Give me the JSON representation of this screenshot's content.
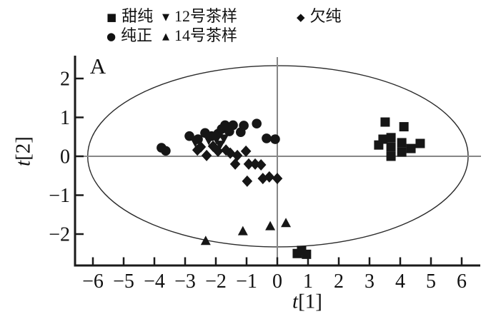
{
  "annotation": "A",
  "colors": {
    "marker": "#161616",
    "axis": "#1a1a1a",
    "crosshair": "#878787",
    "ellipse": "#2b2b2b",
    "background": "#ffffff"
  },
  "legend": {
    "items": [
      {
        "glyph": "■",
        "marker": "square",
        "label": "甜纯"
      },
      {
        "glyph": "▼",
        "marker": "triangle-down",
        "label": "12号茶样"
      },
      {
        "glyph": "◆",
        "marker": "diamond",
        "label": "欠纯"
      },
      {
        "glyph": "●",
        "marker": "circle",
        "label": "纯正"
      },
      {
        "glyph": "▲",
        "marker": "triangle-up",
        "label": "14号茶样"
      }
    ]
  },
  "axes": {
    "x": {
      "symbol": "t",
      "index": "[1]"
    },
    "y": {
      "symbol": "t",
      "index": "[2]"
    }
  },
  "chart_data": {
    "type": "scatter",
    "title": "",
    "xlabel": "t[1]",
    "ylabel": "t[2]",
    "xlim": [
      -6.6,
      6.6
    ],
    "ylim": [
      -2.8,
      2.55
    ],
    "x_ticks": [
      -6,
      -5,
      -4,
      -3,
      -2,
      -1,
      0,
      1,
      2,
      3,
      4,
      5,
      6
    ],
    "y_ticks": [
      2,
      1,
      0,
      -1,
      -2
    ],
    "grid": false,
    "legend_position": "top",
    "ellipse": {
      "cx": 0.02,
      "cy": 0.0,
      "rx": 6.19,
      "ry": 2.33
    },
    "series": [
      {
        "name": "甜纯",
        "marker": "square",
        "points": [
          [
            3.51,
            0.88
          ],
          [
            4.12,
            0.76
          ],
          [
            3.44,
            0.44
          ],
          [
            3.7,
            0.48
          ],
          [
            4.05,
            0.35
          ],
          [
            3.3,
            0.29
          ],
          [
            3.7,
            0.24
          ],
          [
            4.35,
            0.2
          ],
          [
            4.65,
            0.33
          ],
          [
            4.05,
            0.11
          ],
          [
            3.7,
            0.0
          ],
          [
            0.65,
            -2.5
          ],
          [
            0.79,
            -2.42
          ],
          [
            0.95,
            -2.52
          ]
        ]
      },
      {
        "name": "纯正",
        "marker": "circle",
        "points": [
          [
            -3.77,
            0.22
          ],
          [
            -3.63,
            0.14
          ],
          [
            -2.86,
            0.52
          ],
          [
            -2.58,
            0.44
          ],
          [
            -2.35,
            0.6
          ],
          [
            -2.14,
            0.52
          ],
          [
            -1.93,
            0.58
          ],
          [
            -1.81,
            0.7
          ],
          [
            -1.7,
            0.8
          ],
          [
            -1.56,
            0.64
          ],
          [
            -1.44,
            0.8
          ],
          [
            -1.19,
            0.62
          ],
          [
            -1.09,
            0.79
          ],
          [
            -0.67,
            0.84
          ],
          [
            -0.35,
            0.46
          ],
          [
            -0.07,
            0.44
          ]
        ]
      },
      {
        "name": "12号茶样",
        "marker": "triangle-down",
        "points": [
          [
            -2.67,
            0.37
          ],
          [
            -2.23,
            0.42
          ],
          [
            -1.98,
            0.44
          ],
          [
            -1.86,
            0.3
          ],
          [
            -1.74,
            0.46
          ]
        ]
      },
      {
        "name": "14号茶样",
        "marker": "triangle-up",
        "points": [
          [
            -2.33,
            -2.18
          ],
          [
            -1.12,
            -1.93
          ],
          [
            -0.23,
            -1.8
          ],
          [
            0.28,
            -1.72
          ]
        ]
      },
      {
        "name": "欠纯",
        "marker": "diamond",
        "points": [
          [
            -2.6,
            0.16
          ],
          [
            -2.49,
            0.24
          ],
          [
            -2.3,
            0.02
          ],
          [
            -2.09,
            0.26
          ],
          [
            -1.93,
            0.13
          ],
          [
            -1.67,
            0.16
          ],
          [
            -1.53,
            0.08
          ],
          [
            -1.3,
            0.02
          ],
          [
            -1.37,
            -0.2
          ],
          [
            -1.02,
            0.13
          ],
          [
            -0.93,
            -0.2
          ],
          [
            -0.72,
            -0.2
          ],
          [
            -0.53,
            -0.22
          ],
          [
            -0.98,
            -0.64
          ],
          [
            -0.47,
            -0.57
          ],
          [
            -0.26,
            -0.53
          ],
          [
            0.0,
            -0.57
          ]
        ]
      }
    ]
  }
}
